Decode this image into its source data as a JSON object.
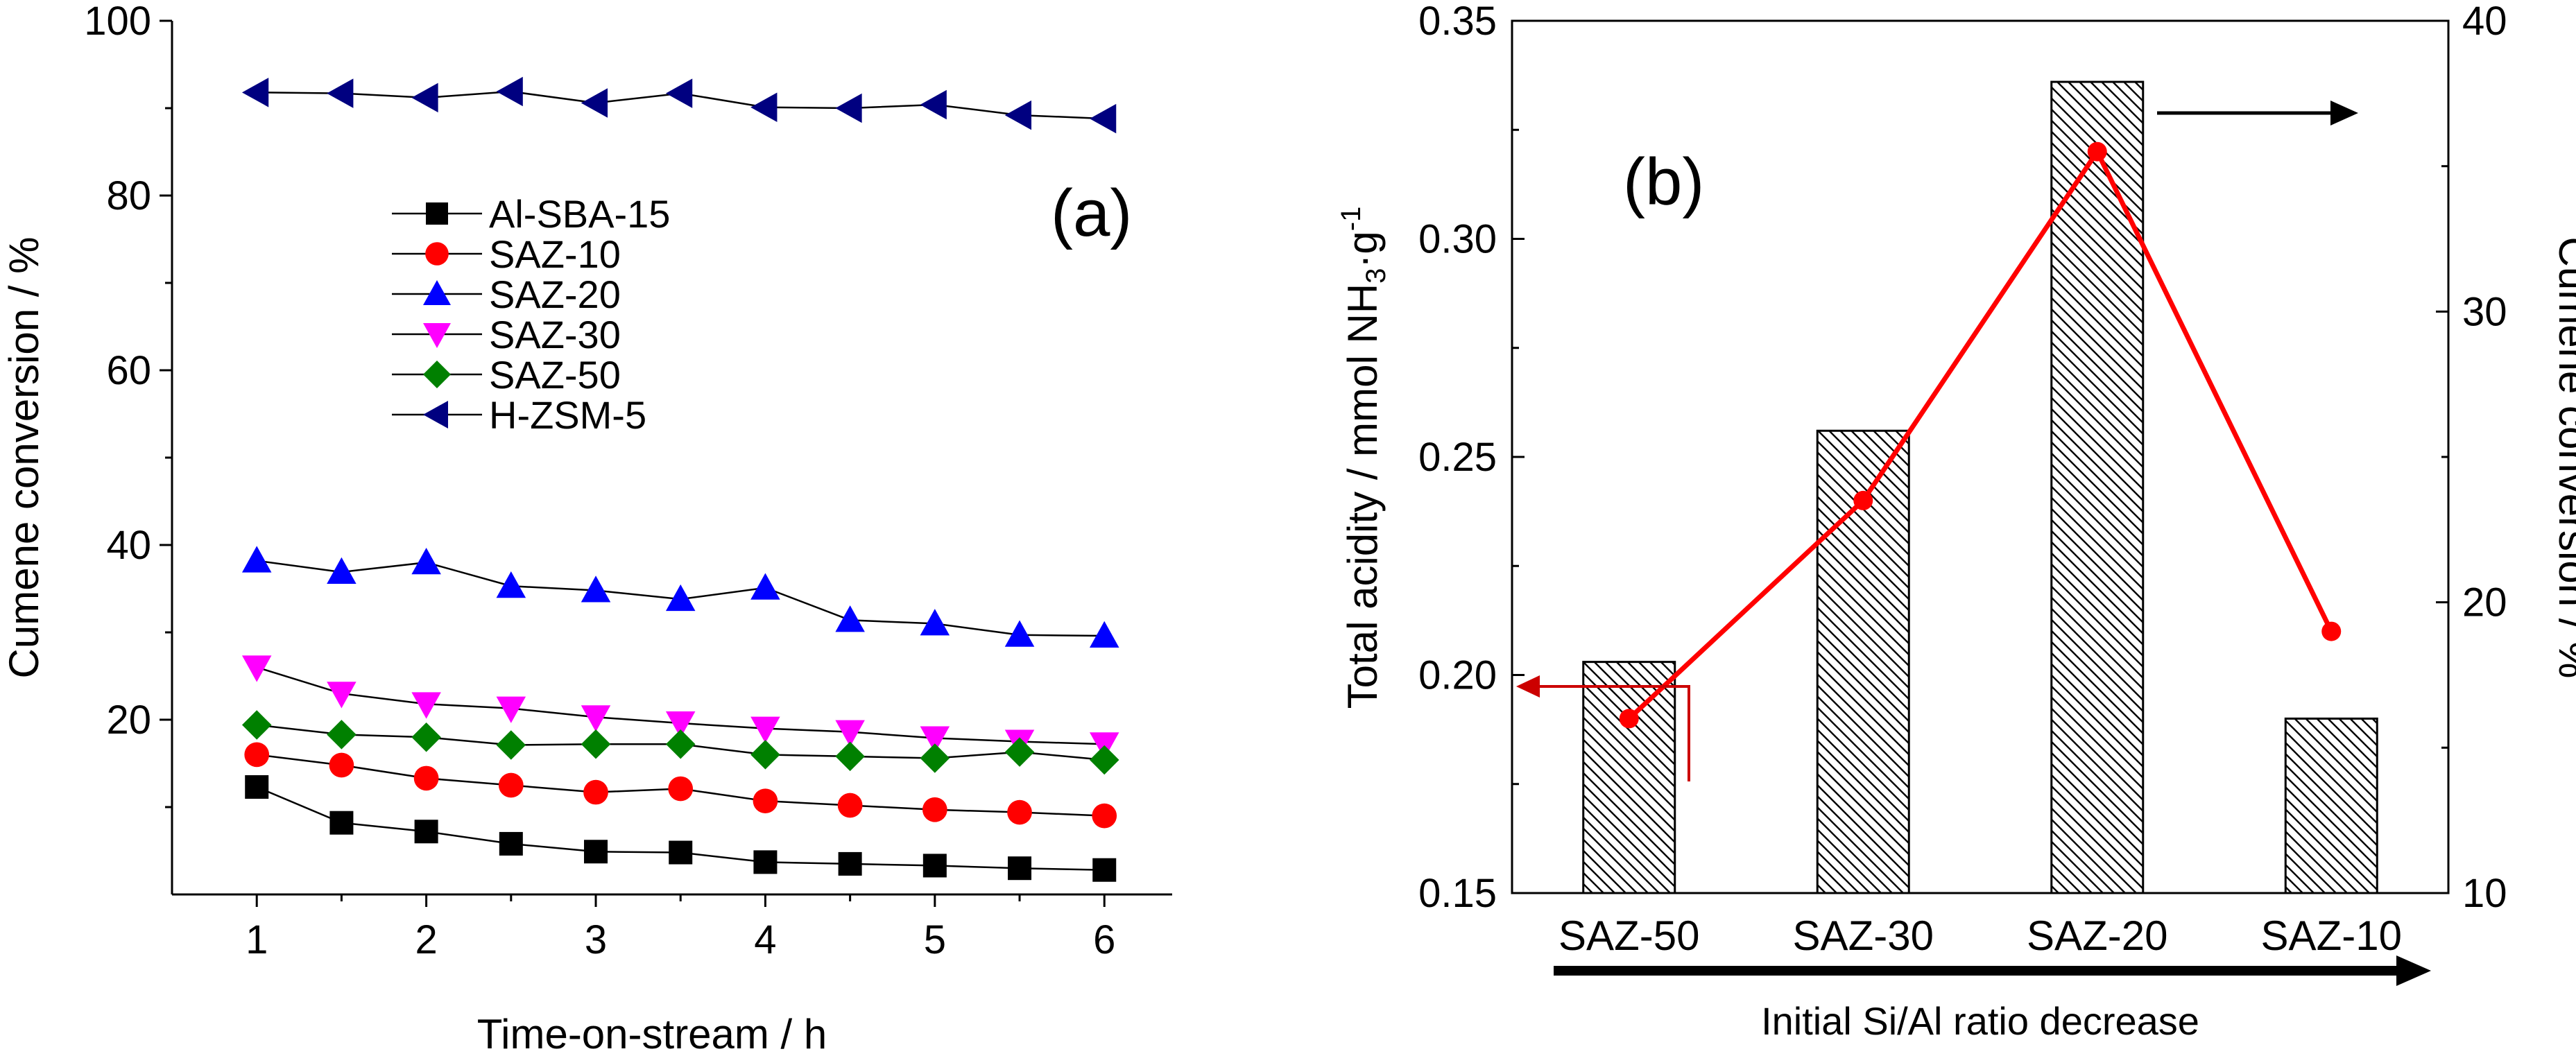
{
  "chart_data": [
    {
      "panel": "(a)",
      "type": "line",
      "xlabel": "Time-on-stream / h",
      "ylabel": "Cumene conversion / %",
      "xlim": [
        0.5,
        6.4
      ],
      "ylim": [
        0,
        100
      ],
      "xticks": [
        1,
        2,
        3,
        4,
        5,
        6
      ],
      "yticks": [
        20,
        40,
        60,
        80,
        100
      ],
      "x": [
        1,
        1.5,
        2,
        2.5,
        3,
        3.5,
        4,
        4.5,
        5,
        5.5,
        6
      ],
      "series": [
        {
          "name": "Al-SBA-15",
          "marker": "square",
          "color": "#000000",
          "values": [
            12.3,
            8.2,
            7.2,
            5.8,
            4.9,
            4.8,
            3.7,
            3.5,
            3.3,
            3.0,
            2.8
          ]
        },
        {
          "name": "SAZ-10",
          "marker": "circle",
          "color": "#ff0000",
          "values": [
            16.0,
            14.8,
            13.3,
            12.5,
            11.7,
            12.1,
            10.7,
            10.2,
            9.7,
            9.4,
            9.0
          ]
        },
        {
          "name": "SAZ-20",
          "marker": "triangle-up",
          "color": "#0000ff",
          "values": [
            38.2,
            36.9,
            38.0,
            35.3,
            34.8,
            33.8,
            35.1,
            31.4,
            31.0,
            29.7,
            29.6
          ]
        },
        {
          "name": "SAZ-30",
          "marker": "triangle-down",
          "color": "#ff00ff",
          "values": [
            26.0,
            23.0,
            21.8,
            21.3,
            20.3,
            19.6,
            19.0,
            18.6,
            17.9,
            17.5,
            17.2
          ]
        },
        {
          "name": "SAZ-50",
          "marker": "diamond",
          "color": "#008000",
          "values": [
            19.4,
            18.3,
            18.0,
            17.1,
            17.2,
            17.2,
            16.0,
            15.8,
            15.6,
            16.3,
            15.4
          ]
        },
        {
          "name": "H-ZSM-5",
          "marker": "triangle-left",
          "color": "#000080",
          "values": [
            91.8,
            91.7,
            91.2,
            91.9,
            90.6,
            91.7,
            90.1,
            90.0,
            90.4,
            89.2,
            88.8
          ]
        }
      ]
    },
    {
      "panel": "(b)",
      "type": "bar",
      "categories": [
        "SAZ-50",
        "SAZ-30",
        "SAZ-20",
        "SAZ-10"
      ],
      "values": [
        0.203,
        0.256,
        0.336,
        0.19
      ],
      "ylabel_left_parts": [
        "Total acidity / mmol NH",
        "3",
        "·g",
        "-1"
      ],
      "ylim_left": [
        0.15,
        0.35
      ],
      "yticks_left": [
        "0.15",
        "0.20",
        "0.25",
        "0.30",
        "0.35"
      ],
      "series_right": {
        "name": "Cumene conversion",
        "color": "#ff0000",
        "values": [
          16.0,
          23.5,
          35.5,
          19.0
        ]
      },
      "ylabel_right": "Cumene conversion / %",
      "ylim_right": [
        10,
        40
      ],
      "yticks_right": [
        10,
        20,
        30,
        40
      ],
      "xlabel": "Initial Si/Al ratio decrease"
    }
  ]
}
